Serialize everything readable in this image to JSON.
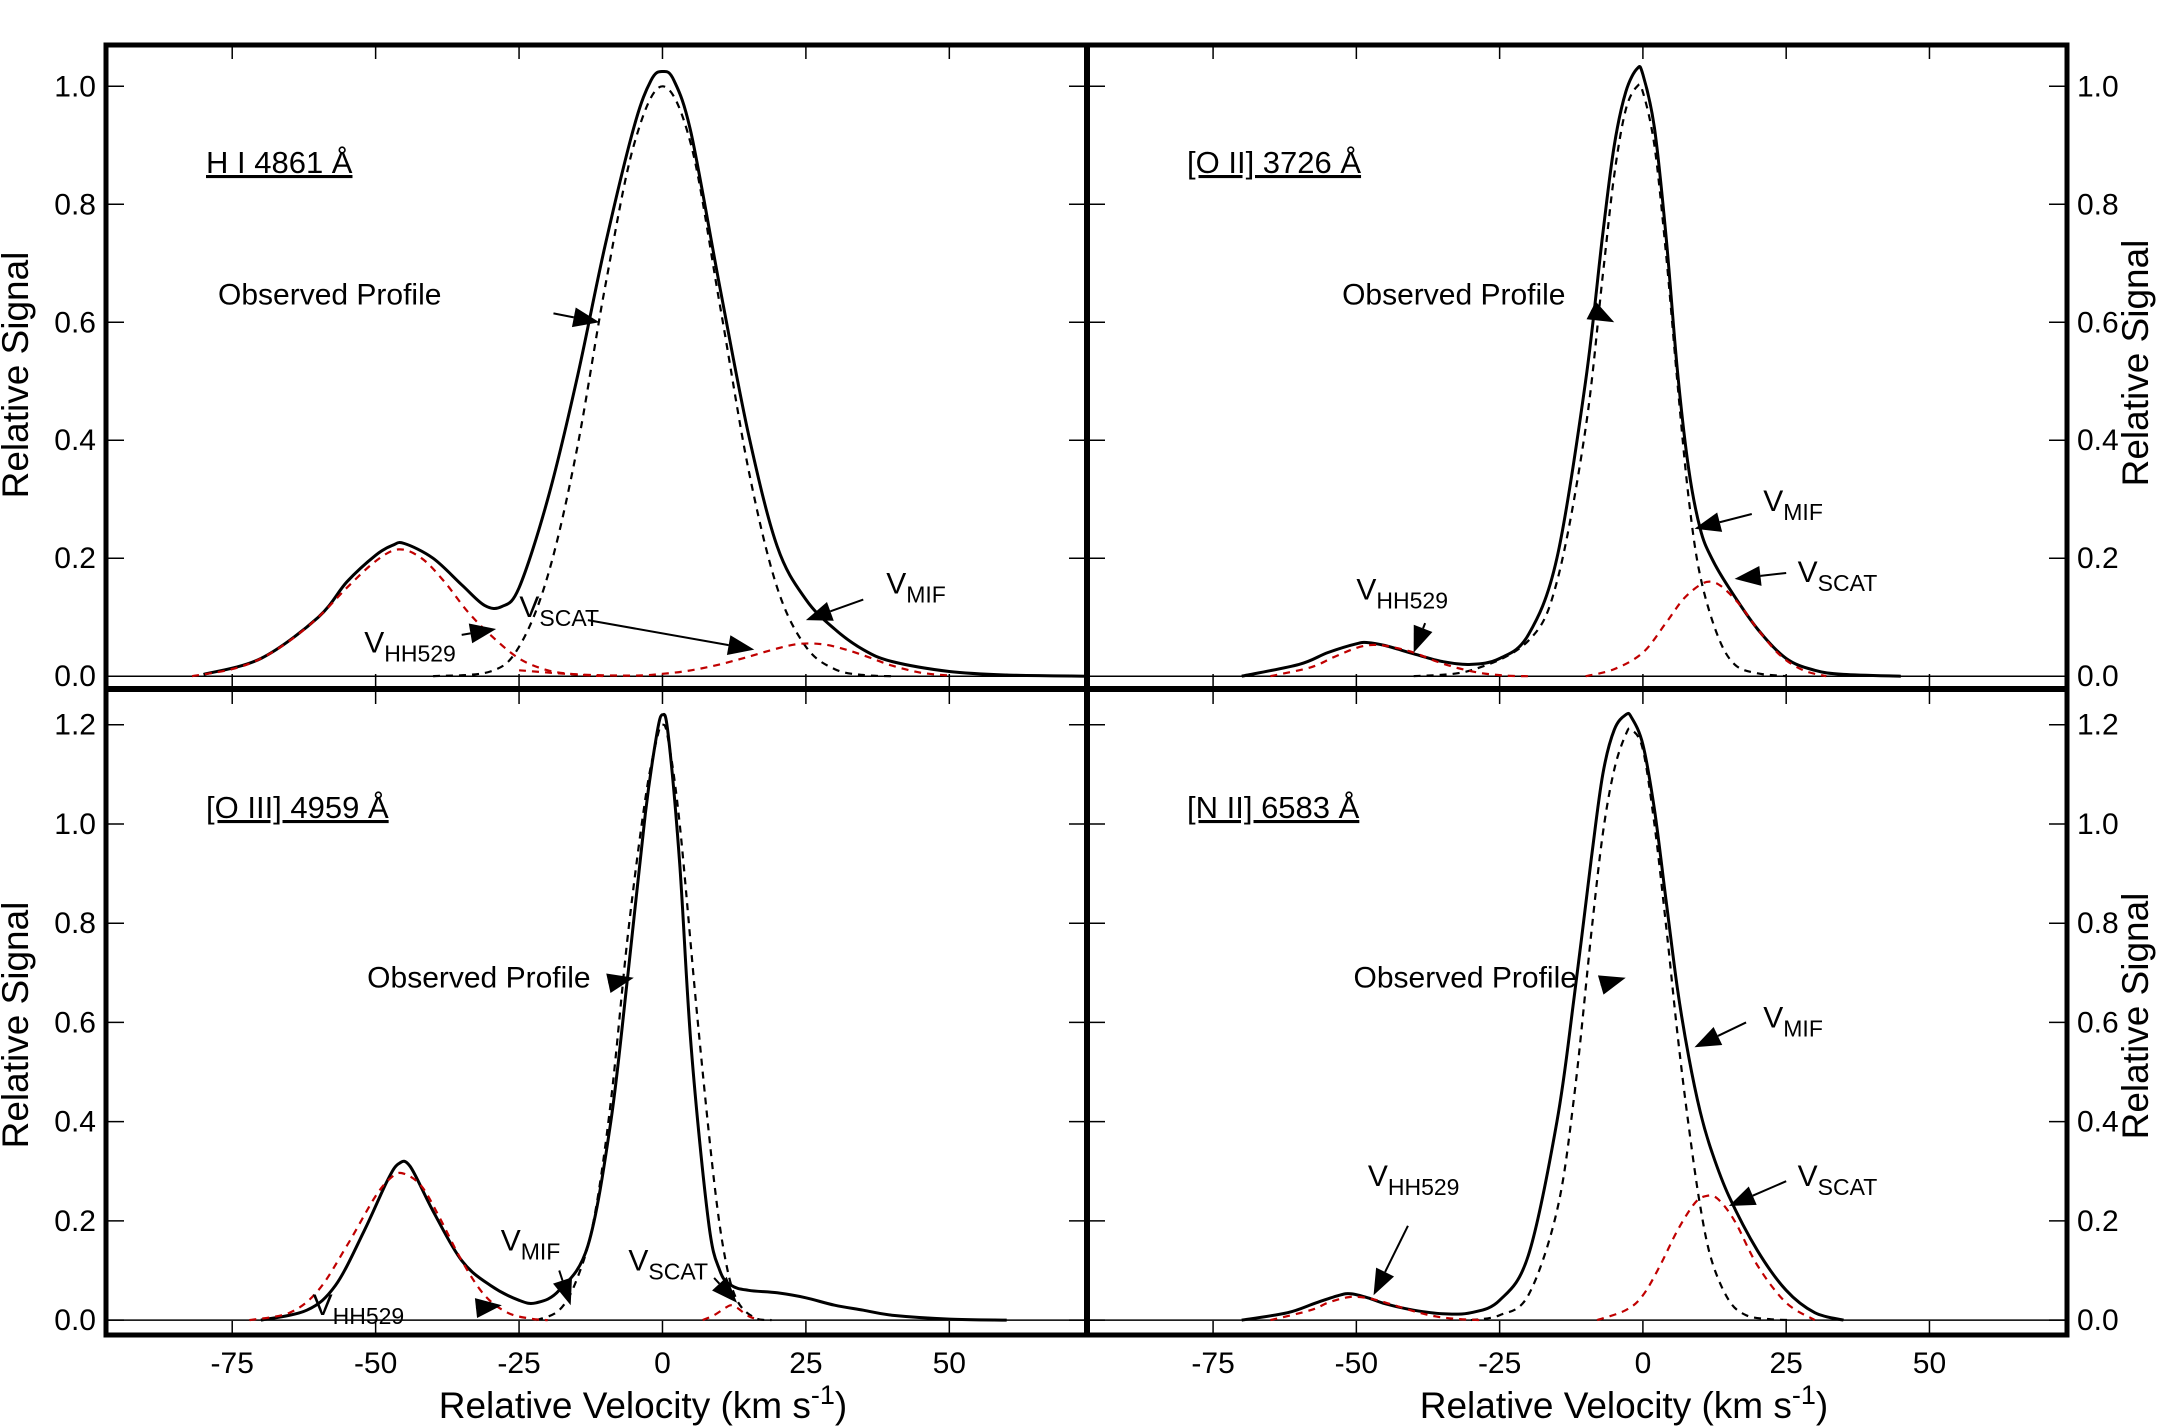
{
  "figure": {
    "xlabel": "Relative Velocity (km s",
    "xlabel_sup": "-1",
    "xlabel_close": ")",
    "ylabel": "Relative Signal"
  },
  "chart_data": [
    {
      "type": "line",
      "panel": "top-left",
      "label": "H I 4861 Å",
      "xlabel": "",
      "ylabel": "Relative Signal",
      "xlim": [
        -97,
        74
      ],
      "ylim": [
        -0.02,
        1.07
      ],
      "yticks": [
        0.0,
        0.2,
        0.4,
        0.6,
        0.8,
        1.0
      ],
      "xticks": [
        -75,
        -50,
        -25,
        0,
        25,
        50
      ],
      "show_xtick_labels": false,
      "components": [
        {
          "name": "Observed Profile",
          "style": "solid",
          "color": "#000000",
          "x": [
            -80,
            -70,
            -60,
            -55,
            -50,
            -47,
            -45,
            -40,
            -35,
            -31,
            -28,
            -25,
            -20,
            -15,
            -10,
            -5,
            -2,
            0,
            2,
            5,
            10,
            15,
            20,
            25,
            30,
            35,
            40,
            50,
            60,
            74
          ],
          "y": [
            0.003,
            0.03,
            0.1,
            0.16,
            0.205,
            0.222,
            0.225,
            0.2,
            0.155,
            0.12,
            0.118,
            0.15,
            0.3,
            0.5,
            0.73,
            0.93,
            1.01,
            1.025,
            1.01,
            0.92,
            0.66,
            0.41,
            0.22,
            0.13,
            0.08,
            0.045,
            0.025,
            0.008,
            0.002,
            0.0
          ]
        },
        {
          "name": "V_MIF",
          "style": "dashed",
          "color": "#000000",
          "x": [
            -40,
            -30,
            -25,
            -20,
            -15,
            -10,
            -5,
            0,
            5,
            10,
            15,
            20,
            25,
            30,
            35,
            40
          ],
          "y": [
            0.0,
            0.008,
            0.05,
            0.17,
            0.38,
            0.66,
            0.9,
            1.0,
            0.9,
            0.63,
            0.35,
            0.15,
            0.05,
            0.012,
            0.002,
            0.0
          ]
        },
        {
          "name": "V_HH529",
          "style": "dashed",
          "color": "#c00000",
          "x": [
            -82,
            -75,
            -70,
            -65,
            -60,
            -55,
            -50,
            -46,
            -42,
            -38,
            -34,
            -30,
            -25,
            -20,
            -15,
            -10
          ],
          "y": [
            0.0,
            0.012,
            0.03,
            0.06,
            0.1,
            0.15,
            0.195,
            0.215,
            0.2,
            0.16,
            0.11,
            0.07,
            0.03,
            0.01,
            0.003,
            0.0
          ]
        },
        {
          "name": "V_SCAT",
          "style": "dashed",
          "color": "#c00000",
          "x": [
            -25,
            -15,
            -5,
            0,
            5,
            10,
            15,
            20,
            24,
            28,
            32,
            36,
            40,
            45,
            50
          ],
          "y": [
            0.01,
            0.003,
            0.001,
            0.004,
            0.01,
            0.02,
            0.033,
            0.047,
            0.055,
            0.054,
            0.045,
            0.032,
            0.018,
            0.006,
            0.001
          ]
        }
      ],
      "annotations": [
        {
          "text": "Observed Profile"
        },
        {
          "text": "V",
          "sub": "HH529"
        },
        {
          "text": "V",
          "sub": "SCAT"
        },
        {
          "text": "V",
          "sub": "MIF"
        }
      ]
    },
    {
      "type": "line",
      "panel": "top-right",
      "label": "[O II] 3726 Å",
      "xlabel": "",
      "ylabel": "Relative Signal",
      "xlim": [
        -97,
        74
      ],
      "ylim": [
        -0.02,
        1.07
      ],
      "yticks": [
        0.0,
        0.2,
        0.4,
        0.6,
        0.8,
        1.0
      ],
      "xticks": [
        -75,
        -50,
        -25,
        0,
        25,
        50
      ],
      "show_xtick_labels": false,
      "components": [
        {
          "name": "Observed Profile",
          "style": "solid",
          "color": "#000000",
          "x": [
            -70,
            -60,
            -55,
            -50,
            -48,
            -45,
            -40,
            -35,
            -30,
            -25,
            -20,
            -15,
            -10,
            -7,
            -5,
            -3,
            -1,
            0,
            2,
            4,
            6,
            8,
            10,
            12,
            15,
            20,
            25,
            30,
            35,
            45
          ],
          "y": [
            0.0,
            0.02,
            0.04,
            0.055,
            0.057,
            0.052,
            0.038,
            0.025,
            0.02,
            0.03,
            0.07,
            0.2,
            0.5,
            0.75,
            0.9,
            0.99,
            1.03,
            1.02,
            0.93,
            0.75,
            0.52,
            0.35,
            0.25,
            0.2,
            0.15,
            0.08,
            0.03,
            0.01,
            0.003,
            0.0
          ]
        },
        {
          "name": "V_MIF",
          "style": "dashed",
          "color": "#000000",
          "x": [
            -40,
            -30,
            -20,
            -15,
            -10,
            -7,
            -5,
            -3,
            -1,
            0,
            2,
            4,
            6,
            8,
            10,
            13,
            16,
            20,
            25
          ],
          "y": [
            0.0,
            0.01,
            0.06,
            0.16,
            0.42,
            0.68,
            0.85,
            0.96,
            1.0,
            0.99,
            0.9,
            0.72,
            0.5,
            0.3,
            0.17,
            0.07,
            0.02,
            0.005,
            0.0
          ]
        },
        {
          "name": "V_HH529",
          "style": "dashed",
          "color": "#c00000",
          "x": [
            -65,
            -58,
            -54,
            -50,
            -47,
            -44,
            -40,
            -36,
            -32,
            -28,
            -24,
            -20
          ],
          "y": [
            0.0,
            0.015,
            0.032,
            0.048,
            0.053,
            0.05,
            0.04,
            0.025,
            0.013,
            0.005,
            0.001,
            0.0
          ]
        },
        {
          "name": "V_SCAT",
          "style": "dashed",
          "color": "#c00000",
          "x": [
            -10,
            -5,
            0,
            4,
            7,
            10,
            12,
            14,
            17,
            20,
            24,
            28,
            32
          ],
          "y": [
            0.0,
            0.012,
            0.04,
            0.09,
            0.13,
            0.155,
            0.16,
            0.15,
            0.12,
            0.08,
            0.035,
            0.01,
            0.0
          ]
        }
      ],
      "annotations": [
        {
          "text": "Observed Profile"
        },
        {
          "text": "V",
          "sub": "MIF"
        },
        {
          "text": "V",
          "sub": "SCAT"
        },
        {
          "text": "V",
          "sub": "HH529"
        }
      ]
    },
    {
      "type": "line",
      "panel": "bottom-left",
      "label": "[O III] 4959 Å",
      "xlabel": "Relative Velocity (km s-1)",
      "ylabel": "Relative Signal",
      "xlim": [
        -97,
        74
      ],
      "ylim": [
        -0.03,
        1.27
      ],
      "yticks": [
        0.0,
        0.2,
        0.4,
        0.6,
        0.8,
        1.0,
        1.2
      ],
      "xticks": [
        -75,
        -50,
        -25,
        0,
        25,
        50
      ],
      "show_xtick_labels": true,
      "components": [
        {
          "name": "Observed Profile",
          "style": "solid",
          "color": "#000000",
          "x": [
            -70,
            -62,
            -57,
            -52,
            -48,
            -46,
            -44,
            -40,
            -35,
            -30,
            -25,
            -22,
            -18,
            -13,
            -9,
            -6,
            -3,
            -1,
            0,
            1,
            3,
            5,
            8,
            10,
            12,
            15,
            20,
            25,
            30,
            35,
            40,
            50,
            60
          ],
          "y": [
            0.0,
            0.02,
            0.07,
            0.18,
            0.28,
            0.315,
            0.31,
            0.22,
            0.12,
            0.07,
            0.04,
            0.035,
            0.06,
            0.15,
            0.4,
            0.7,
            1.02,
            1.18,
            1.22,
            1.18,
            0.92,
            0.55,
            0.2,
            0.1,
            0.07,
            0.06,
            0.055,
            0.045,
            0.03,
            0.02,
            0.01,
            0.002,
            0.0
          ]
        },
        {
          "name": "V_MIF",
          "style": "dashed",
          "color": "#000000",
          "x": [
            -22,
            -18,
            -15,
            -12,
            -9,
            -6,
            -3,
            -1,
            0,
            1,
            3,
            6,
            9,
            11,
            13,
            16,
            19
          ],
          "y": [
            0.0,
            0.02,
            0.08,
            0.2,
            0.44,
            0.78,
            1.05,
            1.17,
            1.2,
            1.17,
            1.0,
            0.62,
            0.28,
            0.12,
            0.04,
            0.005,
            0.0
          ]
        },
        {
          "name": "V_HH529",
          "style": "dashed",
          "color": "#c00000",
          "x": [
            -72,
            -65,
            -60,
            -55,
            -50,
            -47,
            -45,
            -42,
            -39,
            -35,
            -31,
            -27,
            -23,
            -20
          ],
          "y": [
            0.0,
            0.015,
            0.06,
            0.15,
            0.25,
            0.29,
            0.295,
            0.27,
            0.21,
            0.12,
            0.05,
            0.015,
            0.003,
            0.0
          ]
        },
        {
          "name": "V_SCAT",
          "style": "dashed",
          "color": "#c00000",
          "x": [
            7,
            9,
            11,
            12,
            13,
            15,
            17
          ],
          "y": [
            0.0,
            0.01,
            0.025,
            0.03,
            0.025,
            0.008,
            0.0
          ]
        }
      ],
      "annotations": [
        {
          "text": "Observed Profile"
        },
        {
          "text": "V",
          "sub": "MIF"
        },
        {
          "text": "V",
          "sub": "SCAT"
        },
        {
          "text": "V",
          "sub": "HH529"
        }
      ]
    },
    {
      "type": "line",
      "panel": "bottom-right",
      "label": "[N II] 6583 Å",
      "xlabel": "Relative Velocity (km s-1)",
      "ylabel": "Relative Signal",
      "xlim": [
        -97,
        74
      ],
      "ylim": [
        -0.03,
        1.27
      ],
      "yticks": [
        0.0,
        0.2,
        0.4,
        0.6,
        0.8,
        1.0,
        1.2
      ],
      "xticks": [
        -75,
        -50,
        -25,
        0,
        25,
        50
      ],
      "show_xtick_labels": true,
      "components": [
        {
          "name": "Observed Profile",
          "style": "solid",
          "color": "#000000",
          "x": [
            -70,
            -62,
            -57,
            -53,
            -51,
            -48,
            -45,
            -40,
            -35,
            -30,
            -25,
            -20,
            -15,
            -12,
            -9,
            -7,
            -5,
            -3,
            -2,
            0,
            2,
            4,
            6,
            8,
            10,
            12,
            15,
            20,
            25,
            30,
            35
          ],
          "y": [
            0.0,
            0.015,
            0.035,
            0.05,
            0.053,
            0.045,
            0.033,
            0.02,
            0.013,
            0.015,
            0.04,
            0.13,
            0.4,
            0.65,
            0.93,
            1.1,
            1.19,
            1.22,
            1.215,
            1.16,
            1.03,
            0.85,
            0.67,
            0.53,
            0.42,
            0.34,
            0.25,
            0.14,
            0.06,
            0.015,
            0.0
          ]
        },
        {
          "name": "V_MIF",
          "style": "dashed",
          "color": "#000000",
          "x": [
            -30,
            -25,
            -20,
            -15,
            -12,
            -9,
            -7,
            -5,
            -3,
            -2,
            0,
            2,
            4,
            6,
            8,
            10,
            12,
            15,
            18,
            22,
            26
          ],
          "y": [
            0.0,
            0.01,
            0.05,
            0.22,
            0.45,
            0.78,
            0.98,
            1.11,
            1.18,
            1.19,
            1.15,
            1.0,
            0.8,
            0.58,
            0.39,
            0.23,
            0.12,
            0.04,
            0.01,
            0.002,
            0.0
          ]
        },
        {
          "name": "V_HH529",
          "style": "dashed",
          "color": "#c00000",
          "x": [
            -65,
            -58,
            -55,
            -52,
            -50,
            -47,
            -44,
            -40,
            -36,
            -32,
            -28
          ],
          "y": [
            0.0,
            0.02,
            0.035,
            0.045,
            0.047,
            0.042,
            0.032,
            0.018,
            0.007,
            0.002,
            0.0
          ]
        },
        {
          "name": "V_SCAT",
          "style": "dashed",
          "color": "#c00000",
          "x": [
            -8,
            -3,
            0,
            3,
            6,
            9,
            11,
            13,
            16,
            20,
            25,
            30
          ],
          "y": [
            0.0,
            0.02,
            0.05,
            0.11,
            0.18,
            0.235,
            0.25,
            0.245,
            0.2,
            0.11,
            0.035,
            0.0
          ]
        }
      ],
      "annotations": [
        {
          "text": "Observed Profile"
        },
        {
          "text": "V",
          "sub": "MIF"
        },
        {
          "text": "V",
          "sub": "SCAT"
        },
        {
          "text": "V",
          "sub": "HH529"
        }
      ]
    }
  ]
}
